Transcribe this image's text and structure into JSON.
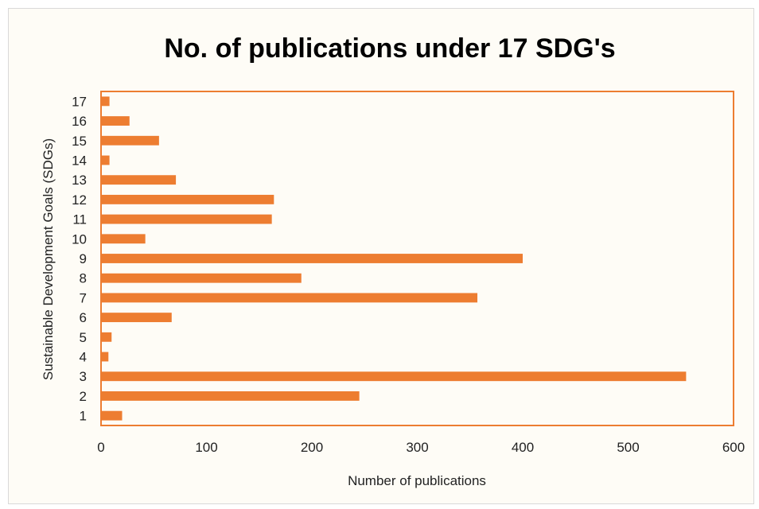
{
  "chart_data": {
    "type": "bar",
    "orientation": "horizontal",
    "title": "No. of publications under 17 SDG's",
    "xlabel": "Number of publications",
    "ylabel": "Sustainable Development Goals (SDGs)",
    "categories": [
      "1",
      "2",
      "3",
      "4",
      "5",
      "6",
      "7",
      "8",
      "9",
      "10",
      "11",
      "12",
      "13",
      "14",
      "15",
      "16",
      "17"
    ],
    "values": [
      20,
      245,
      555,
      7,
      10,
      67,
      357,
      190,
      400,
      42,
      162,
      164,
      71,
      8,
      55,
      27,
      8
    ],
    "xlim": [
      0,
      600
    ],
    "xticks": [
      "0",
      "100",
      "200",
      "300",
      "400",
      "500",
      "600"
    ],
    "grid": false,
    "legend": "none",
    "colors": {
      "bar": "#ed7d31",
      "plot_border": "#ed7d31",
      "background": "#fefcf6"
    }
  }
}
